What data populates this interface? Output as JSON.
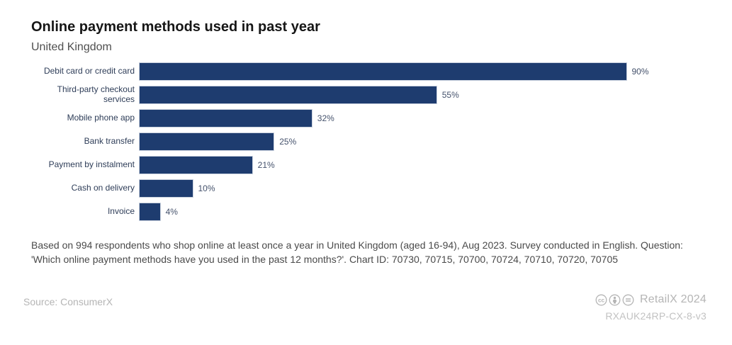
{
  "header": {
    "title": "Online payment methods used in past year",
    "subtitle": "United Kingdom"
  },
  "chart_data": {
    "type": "bar",
    "orientation": "horizontal",
    "title": "Online payment methods used in past year",
    "subtitle": "United Kingdom",
    "categories": [
      "Debit card or credit card",
      "Third-party checkout services",
      "Mobile phone app",
      "Bank transfer",
      "Payment by instalment",
      "Cash on delivery",
      "Invoice"
    ],
    "values": [
      90,
      55,
      32,
      25,
      21,
      10,
      4
    ],
    "value_suffix": "%",
    "xlim": [
      0,
      100
    ],
    "bar_color": "#1e3c6f",
    "grid": false,
    "legend": false
  },
  "footnote": "Based on 994 respondents who shop online at least once a year in United Kingdom (aged 16-94), Aug 2023. Survey conducted in English. Question: 'Which online payment methods have you used in the past 12 months?'. Chart ID: 70730, 70715, 70700, 70724, 70710, 70720, 70705",
  "footer": {
    "source": "Source: ConsumerX",
    "brand": "RetailX 2024",
    "code": "RXAUK24RP-CX-8-v3",
    "license_icons": [
      "cc-icon",
      "attribution-icon",
      "no-derivatives-icon"
    ],
    "icon_color": "#b5b5b5"
  }
}
